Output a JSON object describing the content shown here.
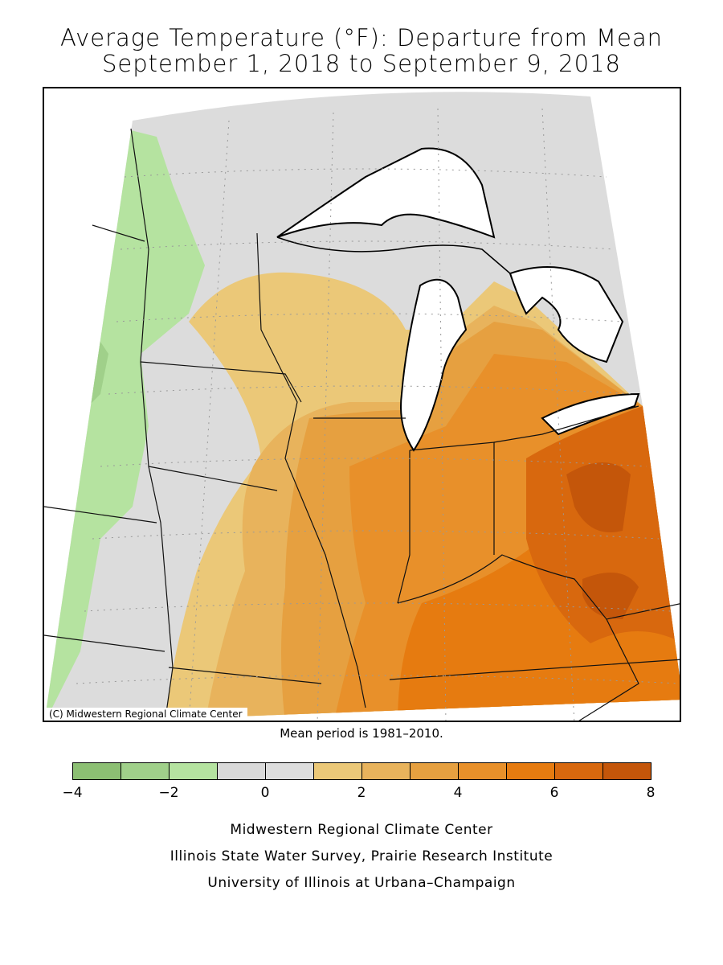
{
  "title": {
    "line1": "Average Temperature (°F): Departure from Mean",
    "line2": "September 1, 2018 to September 9, 2018"
  },
  "map": {
    "copyright": "(C) Midwestern Regional Climate Center",
    "mean_period": "Mean period is 1981–2010.",
    "regions": [
      {
        "name": "western-edge",
        "category": -3
      },
      {
        "name": "minnesota-west",
        "category": -2
      },
      {
        "name": "minnesota-central",
        "category": 0
      },
      {
        "name": "wisconsin-north",
        "category": 1
      },
      {
        "name": "iowa-east",
        "category": 3
      },
      {
        "name": "michigan-lower",
        "category": 4
      },
      {
        "name": "indiana",
        "category": 4
      },
      {
        "name": "ohio",
        "category": 6
      },
      {
        "name": "ohio-core",
        "category": 7
      },
      {
        "name": "kentucky-tennessee",
        "category": 5
      }
    ]
  },
  "legend": {
    "min": -4,
    "max": 8,
    "bins": [
      {
        "from": -4,
        "to": -3,
        "color": "#8cbf73"
      },
      {
        "from": -3,
        "to": -2,
        "color": "#a0d08a"
      },
      {
        "from": -2,
        "to": -1,
        "color": "#b5e3a0"
      },
      {
        "from": -1,
        "to": 0,
        "color": "#d9d9d9"
      },
      {
        "from": 0,
        "to": 1,
        "color": "#dddddd"
      },
      {
        "from": 1,
        "to": 2,
        "color": "#ebc878"
      },
      {
        "from": 2,
        "to": 3,
        "color": "#e8b35c"
      },
      {
        "from": 3,
        "to": 4,
        "color": "#e6a040"
      },
      {
        "from": 4,
        "to": 5,
        "color": "#e8902a"
      },
      {
        "from": 5,
        "to": 6,
        "color": "#e67b10"
      },
      {
        "from": 6,
        "to": 7,
        "color": "#d8680e"
      },
      {
        "from": 7,
        "to": 8,
        "color": "#c4560a"
      }
    ],
    "tick_labels": [
      "−4",
      "−2",
      "0",
      "2",
      "4",
      "6",
      "8"
    ]
  },
  "credits": {
    "line1": "Midwestern Regional Climate Center",
    "line2": "Illinois State Water Survey, Prairie Research Institute",
    "line3": "University of Illinois at Urbana–Champaign"
  }
}
